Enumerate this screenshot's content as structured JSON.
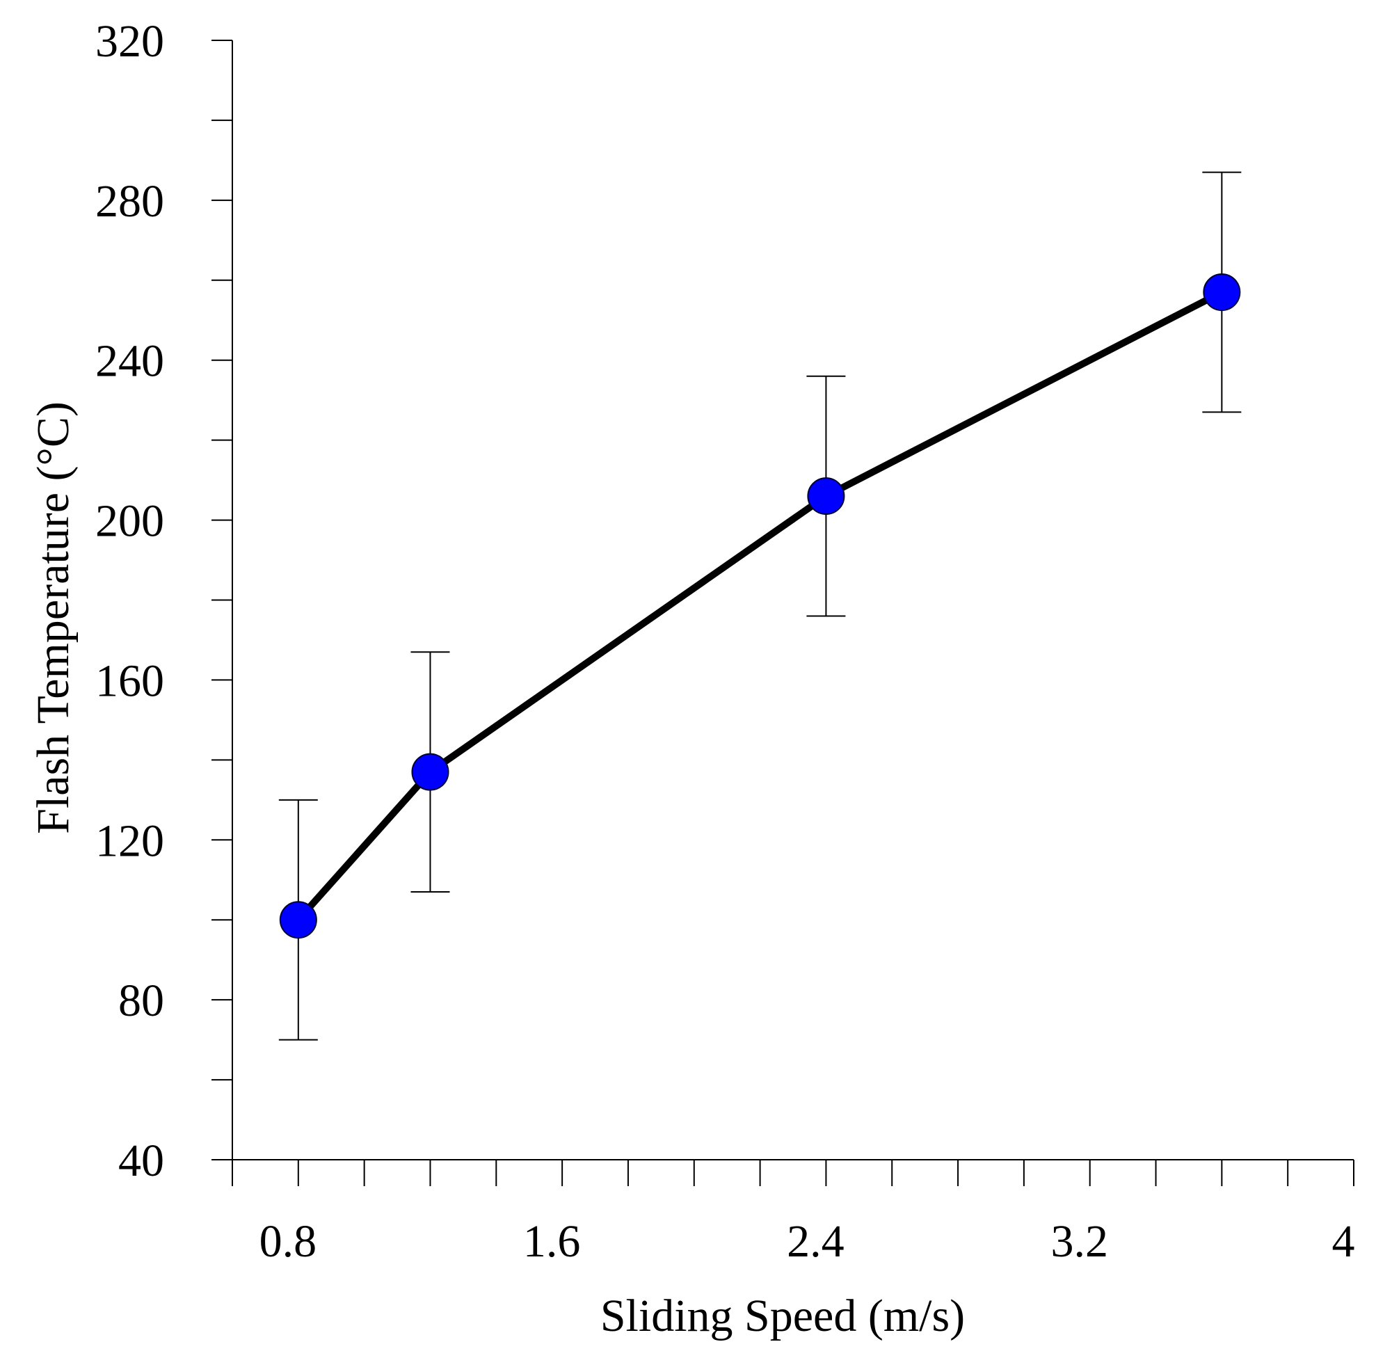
{
  "chart_data": {
    "type": "line",
    "title": "",
    "xlabel": "Sliding Speed (m/s)",
    "ylabel": "Flash Temperature (°C)",
    "xlim": [
      0.6,
      4.0
    ],
    "ylim": [
      40,
      320
    ],
    "x_ticks": [
      0.8,
      1.6,
      2.4,
      3.2,
      4
    ],
    "x_tick_labels": [
      "0.8",
      "1.6",
      "2.4",
      "3.2",
      "4"
    ],
    "x_minor_ticks": [
      0.6,
      1.0,
      1.2,
      1.4,
      1.8,
      2.0,
      2.2,
      2.6,
      2.8,
      3.0,
      3.4,
      3.6,
      3.8
    ],
    "y_ticks": [
      40,
      80,
      120,
      160,
      200,
      240,
      280,
      320
    ],
    "y_tick_labels": [
      "40",
      "80",
      "120",
      "160",
      "200",
      "240",
      "280",
      "320"
    ],
    "y_minor_ticks": [
      60,
      100,
      140,
      180,
      220,
      260,
      300
    ],
    "grid": false,
    "series": [
      {
        "name": "Flash Temperature",
        "x": [
          0.8,
          1.2,
          2.4,
          3.6
        ],
        "values": [
          100,
          137,
          206,
          257
        ],
        "error": [
          30,
          30,
          30,
          30
        ],
        "line_color": "#000000",
        "marker_color": "#0000ff"
      }
    ]
  }
}
